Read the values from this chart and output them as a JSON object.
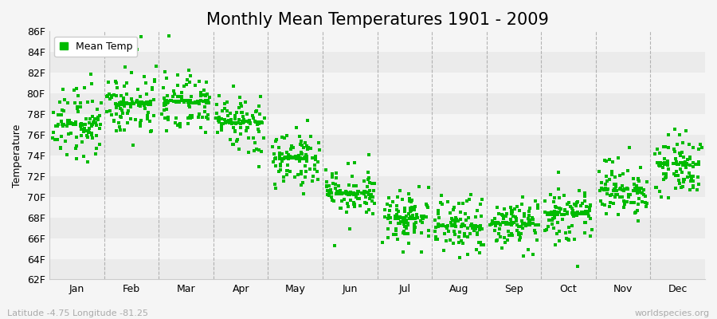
{
  "title": "Monthly Mean Temperatures 1901 - 2009",
  "ylabel": "Temperature",
  "ylim": [
    62,
    86
  ],
  "yticks": [
    62,
    64,
    66,
    68,
    70,
    72,
    74,
    76,
    78,
    80,
    82,
    84,
    86
  ],
  "ytick_labels": [
    "62F",
    "64F",
    "66F",
    "68F",
    "70F",
    "72F",
    "74F",
    "76F",
    "78F",
    "80F",
    "82F",
    "84F",
    "86F"
  ],
  "months": [
    "Jan",
    "Feb",
    "Mar",
    "Apr",
    "May",
    "Jun",
    "Jul",
    "Aug",
    "Sep",
    "Oct",
    "Nov",
    "Dec"
  ],
  "month_centers": [
    0.5,
    1.5,
    2.5,
    3.5,
    4.5,
    5.5,
    6.5,
    7.5,
    8.5,
    9.5,
    10.5,
    11.5
  ],
  "mean_temps": [
    77.1,
    79.0,
    79.2,
    77.2,
    73.8,
    70.4,
    67.9,
    67.2,
    67.4,
    68.4,
    70.7,
    73.2
  ],
  "modal_temps": [
    77.0,
    79.0,
    79.2,
    77.2,
    73.8,
    70.4,
    68.0,
    67.2,
    67.4,
    68.4,
    70.7,
    73.2
  ],
  "temp_spreads": [
    2.5,
    2.2,
    2.2,
    2.2,
    2.0,
    2.0,
    1.8,
    1.8,
    1.8,
    2.0,
    2.0,
    2.2
  ],
  "n_points": 109,
  "dot_color": "#00bb00",
  "background_color": "#f5f5f5",
  "band_light": "#ebebeb",
  "band_dark": "#f5f5f5",
  "dashed_line_color": "#999999",
  "legend_label": "Mean Temp",
  "bottom_left_text": "Latitude -4.75 Longitude -81.25",
  "bottom_right_text": "worldspecies.org",
  "title_fontsize": 15,
  "axis_label_fontsize": 9,
  "tick_label_fontsize": 9,
  "annotation_fontsize": 8
}
